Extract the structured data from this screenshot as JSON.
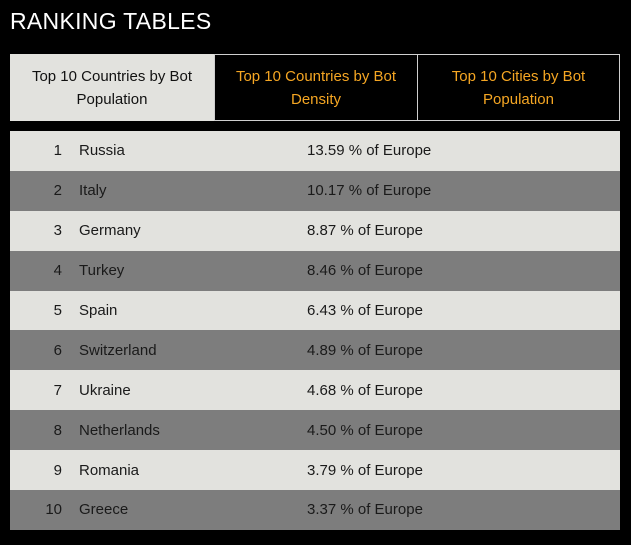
{
  "header": {
    "title": "RANKING TABLES"
  },
  "tabs": [
    {
      "label": "Top 10 Countries by Bot Population",
      "active": true
    },
    {
      "label": "Top 10 Countries by Bot Density",
      "active": false
    },
    {
      "label": "Top 10 Cities by Bot Population",
      "active": false
    }
  ],
  "colors": {
    "background": "#000000",
    "tab_active_bg": "#e2e2de",
    "tab_inactive_text": "#f5a623",
    "row_light": "#e2e2de",
    "row_dark": "#7d7d7d"
  },
  "table": {
    "rows": [
      {
        "rank": "1",
        "country": "Russia",
        "value": "13.59 % of Europe"
      },
      {
        "rank": "2",
        "country": "Italy",
        "value": "10.17 % of Europe"
      },
      {
        "rank": "3",
        "country": "Germany",
        "value": "8.87 % of Europe"
      },
      {
        "rank": "4",
        "country": "Turkey",
        "value": "8.46 % of Europe"
      },
      {
        "rank": "5",
        "country": "Spain",
        "value": "6.43 % of Europe"
      },
      {
        "rank": "6",
        "country": "Switzerland",
        "value": "4.89 % of Europe"
      },
      {
        "rank": "7",
        "country": "Ukraine",
        "value": "4.68 % of Europe"
      },
      {
        "rank": "8",
        "country": "Netherlands",
        "value": "4.50 % of Europe"
      },
      {
        "rank": "9",
        "country": "Romania",
        "value": "3.79 % of Europe"
      },
      {
        "rank": "10",
        "country": "Greece",
        "value": "3.37 % of Europe"
      }
    ]
  }
}
